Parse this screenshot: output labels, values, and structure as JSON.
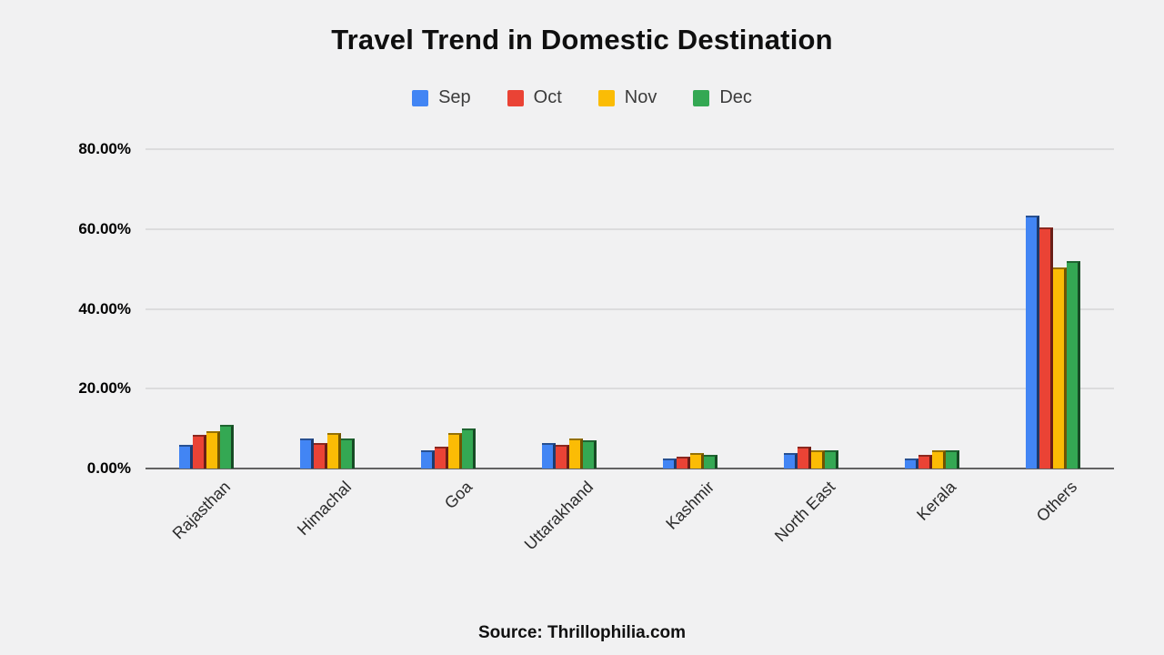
{
  "source": "Source: Thrillophilia.com",
  "chart_data": {
    "type": "bar",
    "title": "Travel Trend in Domestic Destination",
    "categories": [
      "Rajasthan",
      "Himachal",
      "Goa",
      "Uttarakhand",
      "Kashmir",
      "North East",
      "Kerala",
      "Others"
    ],
    "series": [
      {
        "name": "Sep",
        "color": "#4285f4",
        "values": [
          5.5,
          7,
          4,
          6,
          2,
          3.5,
          2,
          63
        ]
      },
      {
        "name": "Oct",
        "color": "#ea4335",
        "values": [
          8,
          6,
          5,
          5.5,
          2.5,
          5,
          3,
          60
        ]
      },
      {
        "name": "Nov",
        "color": "#fbbc05",
        "values": [
          9,
          8.5,
          8.5,
          7,
          3.5,
          4,
          4,
          50
        ]
      },
      {
        "name": "Dec",
        "color": "#34a853",
        "values": [
          10.5,
          7,
          9.5,
          6.5,
          3,
          4,
          4,
          51.5
        ]
      }
    ],
    "xlabel": "",
    "ylabel": "",
    "ylim": [
      0,
      80
    ],
    "yticks": [
      0,
      20,
      40,
      60,
      80
    ],
    "ytick_labels": [
      "0.00%",
      "20.00%",
      "40.00%",
      "60.00%",
      "80.00%"
    ],
    "grid": true,
    "legend_position": "top",
    "caption": "Source: Thrillophilia.com"
  }
}
